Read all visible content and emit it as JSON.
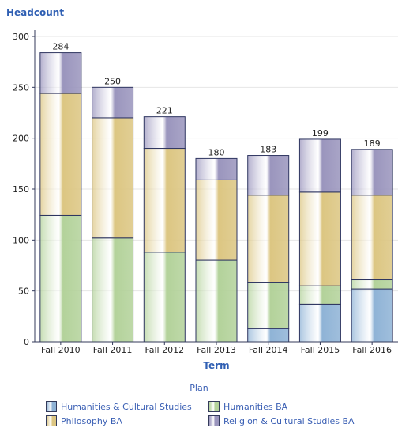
{
  "chart_data": {
    "type": "bar",
    "stacked": true,
    "ylabel": "Headcount",
    "xlabel": "Term",
    "legend_title": "Plan",
    "ylim": [
      0,
      300
    ],
    "yticks": [
      "0",
      "50",
      "100",
      "150",
      "200",
      "250",
      "300"
    ],
    "grid": true,
    "legend_position": "bottom",
    "categories": [
      "Fall 2010",
      "Fall 2011",
      "Fall 2012",
      "Fall 2013",
      "Fall 2014",
      "Fall 2015",
      "Fall 2016"
    ],
    "totals": [
      "284",
      "250",
      "221",
      "180",
      "183",
      "199",
      "189"
    ],
    "series": [
      {
        "name": "Humanities & Cultural Studies",
        "color": "#8fb3d6",
        "values": [
          0,
          0,
          0,
          0,
          13,
          37,
          52
        ]
      },
      {
        "name": "Humanities BA",
        "color": "#b3d29a",
        "values": [
          124,
          102,
          88,
          80,
          45,
          18,
          9
        ]
      },
      {
        "name": "Philosophy BA",
        "color": "#dcc682",
        "values": [
          120,
          118,
          102,
          79,
          86,
          92,
          83
        ]
      },
      {
        "name": "Religion & Cultural Studies BA",
        "color": "#9a95bd",
        "values": [
          40,
          30,
          31,
          21,
          39,
          52,
          45
        ]
      }
    ]
  }
}
